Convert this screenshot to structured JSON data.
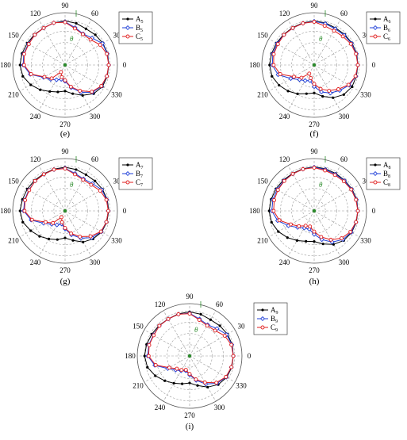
{
  "colors": {
    "A": "#000000",
    "B": "#1f3fd8",
    "C": "#e01e1e",
    "grid": "#9a9a9a",
    "theta": "#2a8a2a"
  },
  "chart_data": [
    {
      "type": "polar-line",
      "panel": "(e)",
      "theta_label": "θ",
      "angle_ticks": [
        "0",
        "30",
        "60",
        "90",
        "120",
        "150",
        "180",
        "210",
        "240",
        "270",
        "300",
        "330"
      ],
      "angles_deg": [
        0,
        15,
        30,
        45,
        60,
        75,
        90,
        105,
        120,
        135,
        150,
        165,
        180,
        195,
        210,
        225,
        240,
        255,
        270,
        285,
        300,
        315,
        330,
        345
      ],
      "radial_scale": "relative 0–1",
      "series": [
        {
          "name": "A",
          "sub": "5",
          "marker": "dot",
          "values": [
            0.97,
            0.98,
            0.97,
            0.95,
            0.93,
            0.96,
            0.98,
            0.97,
            0.95,
            0.96,
            0.97,
            0.99,
            1.0,
            0.97,
            0.88,
            0.78,
            0.68,
            0.62,
            0.58,
            0.66,
            0.78,
            0.9,
            0.96,
            0.97
          ]
        },
        {
          "name": "B",
          "sub": "5",
          "marker": "diamond",
          "values": [
            0.97,
            0.97,
            0.96,
            0.85,
            0.8,
            0.86,
            0.96,
            0.97,
            0.95,
            0.95,
            0.94,
            0.95,
            0.93,
            0.8,
            0.55,
            0.45,
            0.38,
            0.33,
            0.36,
            0.52,
            0.7,
            0.86,
            0.94,
            0.96
          ]
        },
        {
          "name": "C",
          "sub": "5",
          "marker": "circle",
          "values": [
            0.97,
            0.96,
            0.9,
            0.8,
            0.79,
            0.84,
            0.95,
            0.97,
            0.95,
            0.95,
            0.93,
            0.94,
            0.91,
            0.78,
            0.53,
            0.42,
            0.18,
            0.28,
            0.34,
            0.5,
            0.66,
            0.84,
            0.93,
            0.96
          ]
        }
      ]
    },
    {
      "type": "polar-line",
      "panel": "(f)",
      "theta_label": "θ",
      "angle_ticks": [
        "0",
        "30",
        "60",
        "90",
        "120",
        "150",
        "180",
        "210",
        "240",
        "270",
        "300",
        "330"
      ],
      "angles_deg": [
        0,
        15,
        30,
        45,
        60,
        75,
        90,
        105,
        120,
        135,
        150,
        165,
        180,
        195,
        210,
        225,
        240,
        255,
        270,
        285,
        300,
        315,
        330,
        345
      ],
      "radial_scale": "relative 0–1",
      "series": [
        {
          "name": "A",
          "sub": "6",
          "marker": "dot",
          "values": [
            0.97,
            0.98,
            0.97,
            0.96,
            0.95,
            0.97,
            0.98,
            0.97,
            0.96,
            0.96,
            0.97,
            0.98,
            0.99,
            0.97,
            0.9,
            0.82,
            0.74,
            0.66,
            0.62,
            0.72,
            0.84,
            0.93,
            0.97,
            0.97
          ]
        },
        {
          "name": "B",
          "sub": "6",
          "marker": "diamond",
          "values": [
            0.97,
            0.97,
            0.96,
            0.94,
            0.93,
            0.95,
            0.97,
            0.96,
            0.95,
            0.95,
            0.95,
            0.95,
            0.93,
            0.83,
            0.6,
            0.46,
            0.4,
            0.36,
            0.48,
            0.62,
            0.72,
            0.8,
            0.9,
            0.96
          ]
        },
        {
          "name": "C",
          "sub": "6",
          "marker": "circle",
          "values": [
            0.97,
            0.96,
            0.94,
            0.9,
            0.88,
            0.9,
            0.96,
            0.96,
            0.95,
            0.95,
            0.93,
            0.93,
            0.9,
            0.78,
            0.52,
            0.4,
            0.22,
            0.3,
            0.42,
            0.55,
            0.66,
            0.76,
            0.88,
            0.95
          ]
        }
      ]
    },
    {
      "type": "polar-line",
      "panel": "(g)",
      "theta_label": "θ",
      "angle_ticks": [
        "0",
        "30",
        "60",
        "90",
        "120",
        "150",
        "180",
        "210",
        "240",
        "270",
        "300",
        "330"
      ],
      "angles_deg": [
        0,
        15,
        30,
        45,
        60,
        75,
        90,
        105,
        120,
        135,
        150,
        165,
        180,
        195,
        210,
        225,
        240,
        255,
        270,
        285,
        300,
        315,
        330,
        345
      ],
      "radial_scale": "relative 0–1",
      "series": [
        {
          "name": "A",
          "sub": "7",
          "marker": "dot",
          "values": [
            0.97,
            0.97,
            0.96,
            0.94,
            0.93,
            0.95,
            0.97,
            0.96,
            0.95,
            0.96,
            0.97,
            0.98,
            1.0,
            0.97,
            0.88,
            0.8,
            0.72,
            0.66,
            0.6,
            0.68,
            0.8,
            0.88,
            0.94,
            0.96
          ]
        },
        {
          "name": "B",
          "sub": "7",
          "marker": "diamond",
          "values": [
            0.96,
            0.96,
            0.94,
            0.86,
            0.82,
            0.86,
            0.95,
            0.95,
            0.94,
            0.94,
            0.93,
            0.93,
            0.92,
            0.78,
            0.55,
            0.42,
            0.36,
            0.3,
            0.4,
            0.55,
            0.7,
            0.84,
            0.93,
            0.95
          ]
        },
        {
          "name": "C",
          "sub": "7",
          "marker": "circle",
          "values": [
            0.96,
            0.95,
            0.9,
            0.82,
            0.8,
            0.84,
            0.94,
            0.95,
            0.94,
            0.94,
            0.92,
            0.92,
            0.9,
            0.76,
            0.5,
            0.38,
            0.16,
            0.26,
            0.38,
            0.52,
            0.66,
            0.8,
            0.92,
            0.95
          ]
        }
      ]
    },
    {
      "type": "polar-line",
      "panel": "(h)",
      "theta_label": "θ",
      "angle_ticks": [
        "0",
        "30",
        "60",
        "90",
        "120",
        "150",
        "180",
        "210",
        "240",
        "270",
        "300",
        "330"
      ],
      "angles_deg": [
        0,
        15,
        30,
        45,
        60,
        75,
        90,
        105,
        120,
        135,
        150,
        165,
        180,
        195,
        210,
        225,
        240,
        255,
        270,
        285,
        300,
        315,
        330,
        345
      ],
      "radial_scale": "relative 0–1",
      "series": [
        {
          "name": "A",
          "sub": "8",
          "marker": "dot",
          "values": [
            0.97,
            0.98,
            0.97,
            0.96,
            0.96,
            0.97,
            0.98,
            0.97,
            0.96,
            0.97,
            0.98,
            0.99,
            1.0,
            0.98,
            0.92,
            0.84,
            0.76,
            0.7,
            0.68,
            0.76,
            0.86,
            0.93,
            0.96,
            0.97
          ]
        },
        {
          "name": "B",
          "sub": "8",
          "marker": "diamond",
          "values": [
            0.97,
            0.97,
            0.96,
            0.95,
            0.94,
            0.95,
            0.97,
            0.96,
            0.95,
            0.95,
            0.95,
            0.95,
            0.94,
            0.84,
            0.66,
            0.52,
            0.44,
            0.42,
            0.52,
            0.66,
            0.8,
            0.9,
            0.95,
            0.96
          ]
        },
        {
          "name": "C",
          "sub": "8",
          "marker": "circle",
          "values": [
            0.97,
            0.96,
            0.95,
            0.93,
            0.92,
            0.93,
            0.96,
            0.96,
            0.95,
            0.94,
            0.93,
            0.92,
            0.9,
            0.8,
            0.6,
            0.48,
            0.38,
            0.36,
            0.46,
            0.6,
            0.74,
            0.86,
            0.93,
            0.96
          ]
        }
      ]
    },
    {
      "type": "polar-line",
      "panel": "(i)",
      "theta_label": "θ",
      "angle_ticks": [
        "0",
        "30",
        "60",
        "90",
        "120",
        "150",
        "180",
        "210",
        "240",
        "270",
        "300",
        "330"
      ],
      "angles_deg": [
        0,
        15,
        30,
        45,
        60,
        75,
        90,
        105,
        120,
        135,
        150,
        165,
        180,
        195,
        210,
        225,
        240,
        255,
        270,
        285,
        300,
        315,
        330,
        345
      ],
      "radial_scale": "relative 0–1",
      "series": [
        {
          "name": "A",
          "sub": "9",
          "marker": "dot",
          "values": [
            0.97,
            0.98,
            0.97,
            0.95,
            0.93,
            0.96,
            0.98,
            0.97,
            0.95,
            0.96,
            0.97,
            0.99,
            1.0,
            0.97,
            0.88,
            0.78,
            0.7,
            0.64,
            0.6,
            0.68,
            0.8,
            0.9,
            0.95,
            0.97
          ]
        },
        {
          "name": "B",
          "sub": "9",
          "marker": "diamond",
          "values": [
            0.97,
            0.97,
            0.95,
            0.86,
            0.8,
            0.85,
            0.95,
            0.96,
            0.95,
            0.95,
            0.93,
            0.94,
            0.93,
            0.8,
            0.56,
            0.44,
            0.38,
            0.34,
            0.42,
            0.56,
            0.72,
            0.86,
            0.94,
            0.96
          ]
        },
        {
          "name": "C",
          "sub": "9",
          "marker": "circle",
          "values": [
            0.97,
            0.96,
            0.9,
            0.8,
            0.78,
            0.83,
            0.94,
            0.96,
            0.95,
            0.95,
            0.92,
            0.93,
            0.91,
            0.78,
            0.52,
            0.4,
            0.36,
            0.32,
            0.4,
            0.54,
            0.68,
            0.84,
            0.93,
            0.96
          ]
        }
      ]
    }
  ]
}
